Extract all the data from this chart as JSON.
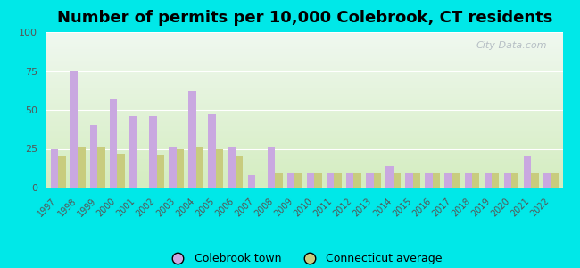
{
  "title": "Number of permits per 10,000 Colebrook, CT residents",
  "years": [
    1997,
    1998,
    1999,
    2000,
    2001,
    2002,
    2003,
    2004,
    2005,
    2006,
    2007,
    2008,
    2009,
    2010,
    2011,
    2012,
    2013,
    2014,
    2015,
    2016,
    2017,
    2018,
    2019,
    2020,
    2021,
    2022
  ],
  "colebrook": [
    25,
    75,
    40,
    57,
    46,
    46,
    26,
    62,
    47,
    26,
    8,
    26,
    9,
    9,
    9,
    9,
    9,
    14,
    9,
    9,
    9,
    9,
    9,
    9,
    20,
    9
  ],
  "ct_avg": [
    20,
    26,
    26,
    22,
    0,
    21,
    25,
    26,
    25,
    20,
    0,
    9,
    9,
    9,
    9,
    9,
    9,
    9,
    9,
    9,
    9,
    9,
    9,
    9,
    9,
    9
  ],
  "colebrook_color": "#c9a8e0",
  "ct_avg_color": "#c8cc7e",
  "bg_outer": "#00e8e8",
  "ylim": [
    0,
    100
  ],
  "yticks": [
    0,
    25,
    50,
    75,
    100
  ],
  "bar_width": 0.38,
  "title_fontsize": 13,
  "legend_label_colebrook": "Colebrook town",
  "legend_label_ct": "Connecticut average",
  "watermark": "City-Data.com",
  "gradient_bottom": "#d4edc0",
  "gradient_top": "#f0f8f0"
}
